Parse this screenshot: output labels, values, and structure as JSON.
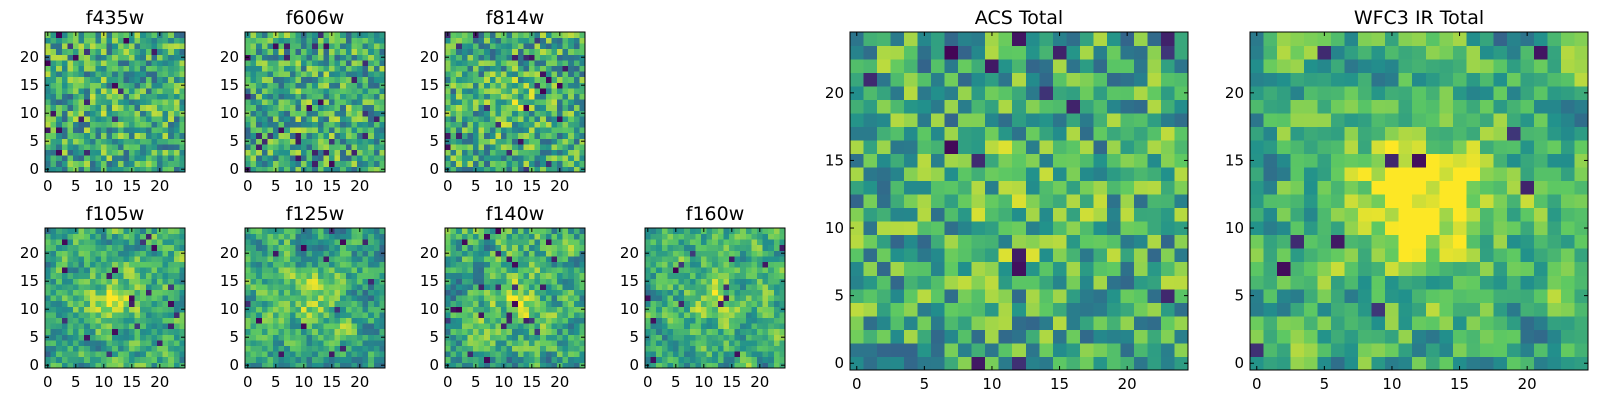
{
  "figure": {
    "background": "#ffffff",
    "colormap": "viridis",
    "colormap_stops": [
      "#440154",
      "#3b528b",
      "#21918c",
      "#5ec962",
      "#fde725"
    ]
  },
  "chart_data": [
    {
      "type": "heatmap",
      "title": "f435w",
      "grid_size": 25,
      "xlim": [
        0,
        24
      ],
      "ylim": [
        0,
        24
      ],
      "xticks": [
        "0",
        "5",
        "10",
        "15",
        "20"
      ],
      "yticks": [
        "0",
        "5",
        "10",
        "15",
        "20"
      ],
      "pattern": "noise",
      "seed": 11,
      "smoothing": 0,
      "center_peak": 0.05,
      "dark_pixel_fraction": 0.04
    },
    {
      "type": "heatmap",
      "title": "f606w",
      "grid_size": 25,
      "xlim": [
        0,
        24
      ],
      "ylim": [
        0,
        24
      ],
      "xticks": [
        "0",
        "5",
        "10",
        "15",
        "20"
      ],
      "yticks": [
        "0",
        "5",
        "10",
        "15",
        "20"
      ],
      "pattern": "noise",
      "seed": 23,
      "smoothing": 0,
      "center_peak": 0.05,
      "dark_pixel_fraction": 0.04
    },
    {
      "type": "heatmap",
      "title": "f814w",
      "grid_size": 25,
      "xlim": [
        0,
        24
      ],
      "ylim": [
        0,
        24
      ],
      "xticks": [
        "0",
        "5",
        "10",
        "15",
        "20"
      ],
      "yticks": [
        "0",
        "5",
        "10",
        "15",
        "20"
      ],
      "pattern": "noise",
      "seed": 37,
      "smoothing": 0,
      "center_peak": 0.12,
      "dark_pixel_fraction": 0.04
    },
    {
      "type": "heatmap",
      "title": "f105w",
      "grid_size": 25,
      "xlim": [
        0,
        24
      ],
      "ylim": [
        0,
        24
      ],
      "xticks": [
        "0",
        "5",
        "10",
        "15",
        "20"
      ],
      "yticks": [
        "0",
        "5",
        "10",
        "15",
        "20"
      ],
      "pattern": "smooth",
      "seed": 41,
      "smoothing": 1,
      "center_peak": 0.3,
      "dark_pixel_fraction": 0.03
    },
    {
      "type": "heatmap",
      "title": "f125w",
      "grid_size": 25,
      "xlim": [
        0,
        24
      ],
      "ylim": [
        0,
        24
      ],
      "xticks": [
        "0",
        "5",
        "10",
        "15",
        "20"
      ],
      "yticks": [
        "0",
        "5",
        "10",
        "15",
        "20"
      ],
      "pattern": "smooth",
      "seed": 53,
      "smoothing": 1,
      "center_peak": 0.2,
      "dark_pixel_fraction": 0.03
    },
    {
      "type": "heatmap",
      "title": "f140w",
      "grid_size": 25,
      "xlim": [
        0,
        24
      ],
      "ylim": [
        0,
        24
      ],
      "xticks": [
        "0",
        "5",
        "10",
        "15",
        "20"
      ],
      "yticks": [
        "0",
        "5",
        "10",
        "15",
        "20"
      ],
      "pattern": "smooth",
      "seed": 67,
      "smoothing": 1,
      "center_peak": 0.2,
      "dark_pixel_fraction": 0.03
    },
    {
      "type": "heatmap",
      "title": "f160w",
      "grid_size": 25,
      "xlim": [
        0,
        24
      ],
      "ylim": [
        0,
        24
      ],
      "xticks": [
        "0",
        "5",
        "10",
        "15",
        "20"
      ],
      "yticks": [
        "0",
        "5",
        "10",
        "15",
        "20"
      ],
      "pattern": "smooth",
      "seed": 79,
      "smoothing": 1,
      "center_peak": 0.2,
      "dark_pixel_fraction": 0.03
    },
    {
      "type": "heatmap",
      "title": "ACS Total",
      "grid_size": 25,
      "xlim": [
        0,
        24
      ],
      "ylim": [
        0,
        24
      ],
      "xticks": [
        "0",
        "5",
        "10",
        "15",
        "20"
      ],
      "yticks": [
        "0",
        "5",
        "10",
        "15",
        "20"
      ],
      "pattern": "noise",
      "seed": 97,
      "smoothing": 0,
      "center_peak": 0.1,
      "dark_pixel_fraction": 0.03
    },
    {
      "type": "heatmap",
      "title": "WFC3 IR Total",
      "grid_size": 25,
      "xlim": [
        0,
        24
      ],
      "ylim": [
        0,
        24
      ],
      "xticks": [
        "0",
        "5",
        "10",
        "15",
        "20"
      ],
      "yticks": [
        "0",
        "5",
        "10",
        "15",
        "20"
      ],
      "pattern": "smooth",
      "seed": 113,
      "smoothing": 1,
      "center_peak": 0.45,
      "dark_pixel_fraction": 0.02
    }
  ]
}
